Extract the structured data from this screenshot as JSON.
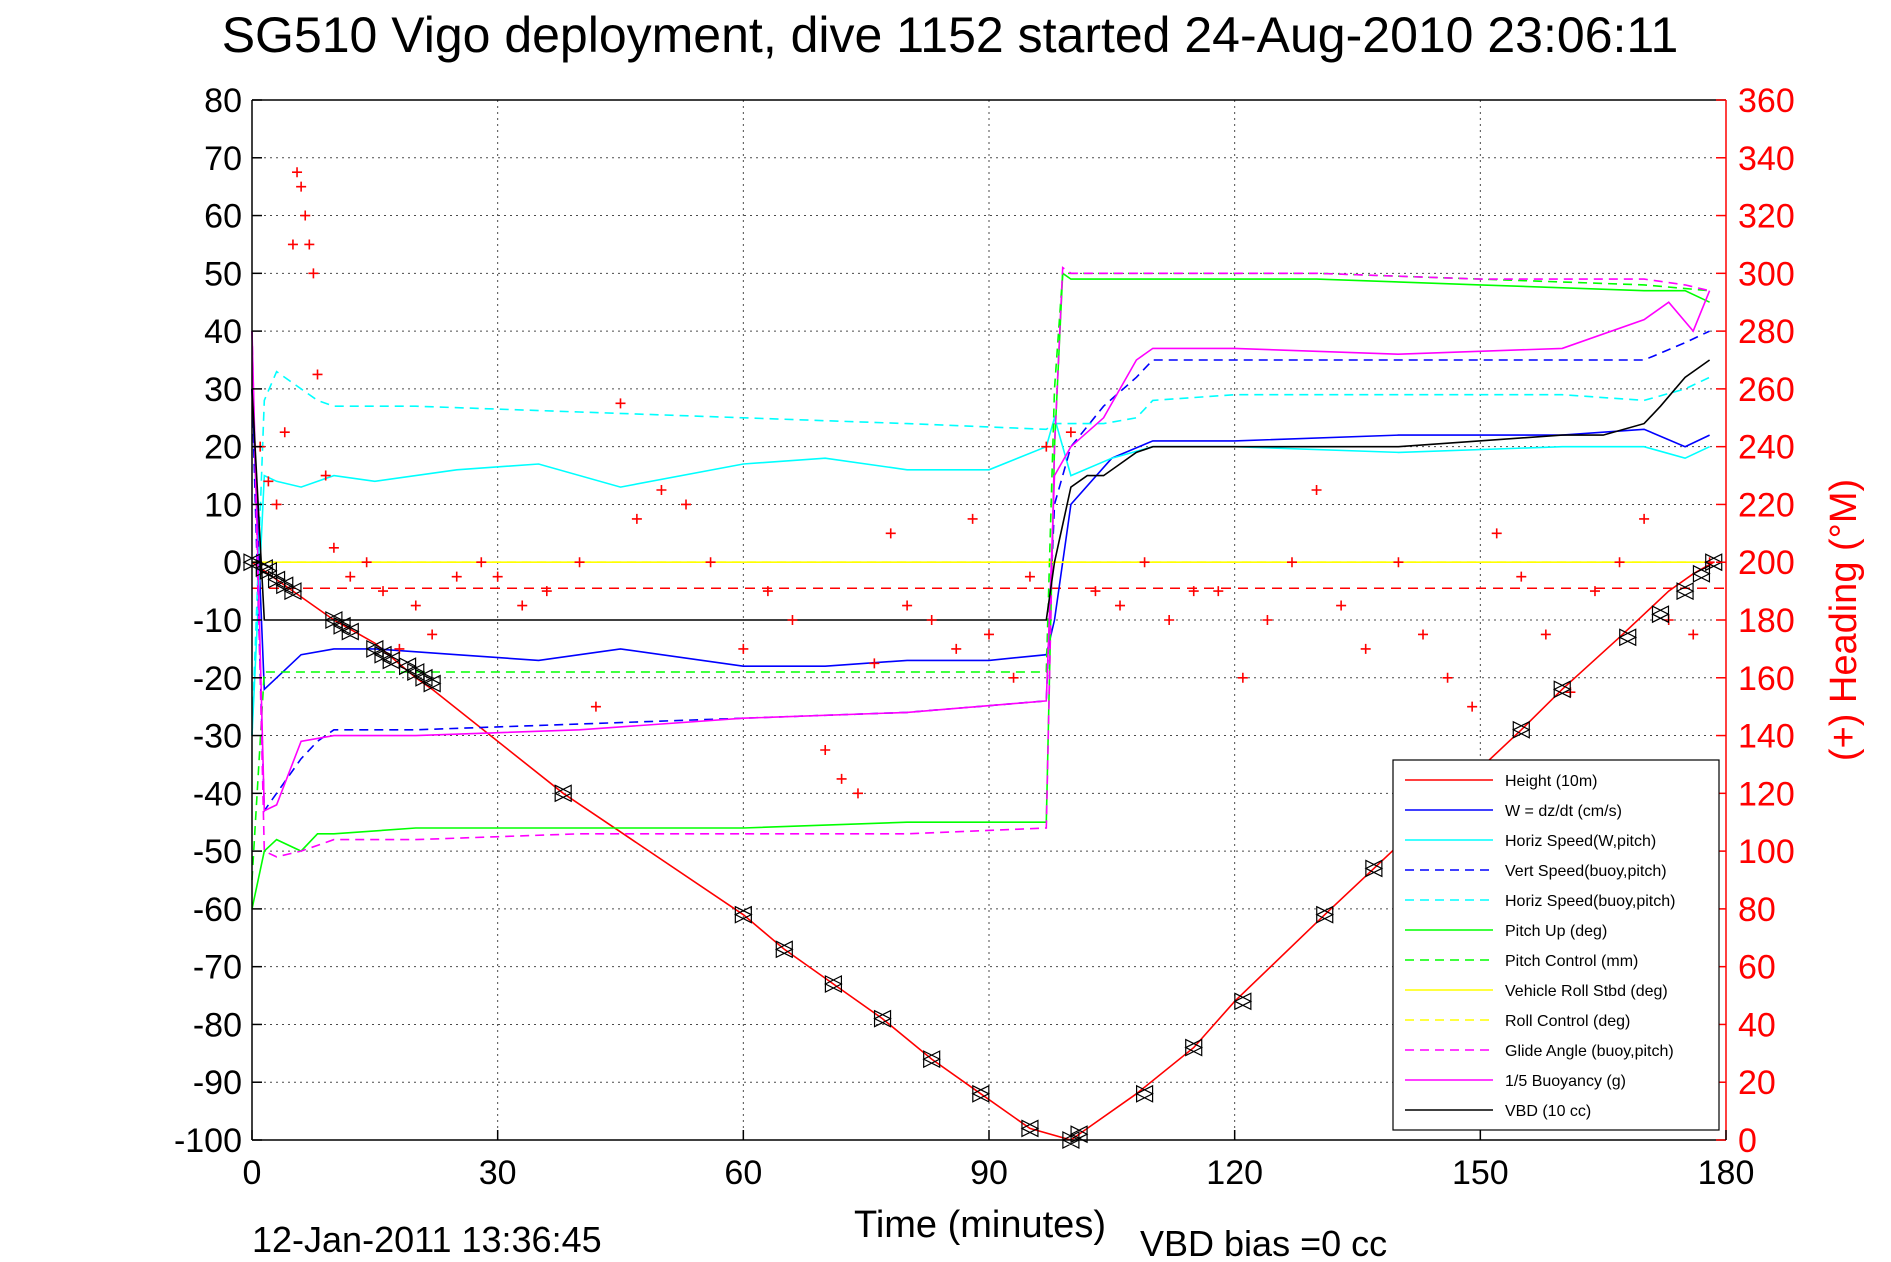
{
  "chart_data": {
    "type": "line",
    "title": "SG510 Vigo deployment, dive 1152 started 24-Aug-2010 23:06:11",
    "xlabel": "Time (minutes)",
    "ylabel_right": "(+) Heading (°M)",
    "footer_timestamp": "12-Jan-2011 13:36:45",
    "footer_note": "VBD bias =0 cc",
    "xlim": [
      0,
      180
    ],
    "ylim": [
      -100,
      80
    ],
    "y2lim": [
      0,
      360
    ],
    "x_ticks": [
      "0",
      "30",
      "60",
      "90",
      "120",
      "150",
      "180"
    ],
    "y_ticks": [
      "80",
      "70",
      "60",
      "50",
      "40",
      "30",
      "20",
      "10",
      "0",
      "-10",
      "-20",
      "-30",
      "-40",
      "-50",
      "-60",
      "-70",
      "-80",
      "-90",
      "-100"
    ],
    "y2_ticks": [
      "360",
      "340",
      "320",
      "300",
      "280",
      "260",
      "240",
      "220",
      "200",
      "180",
      "160",
      "140",
      "120",
      "100",
      "80",
      "60",
      "40",
      "20",
      "0"
    ],
    "grid": true,
    "legend_position": "lower-right",
    "series": [
      {
        "name": "Height (10m)",
        "color": "#ff0000",
        "style": "solid",
        "x": [
          0,
          2,
          5,
          10,
          15,
          20,
          22,
          38,
          60,
          65,
          71,
          77,
          83,
          89,
          95,
          100,
          102,
          108,
          115,
          120,
          131,
          137,
          155,
          160,
          167,
          170,
          173,
          176,
          178.5
        ],
        "y": [
          0,
          -2,
          -5,
          -10,
          -14,
          -20,
          -22,
          -40,
          -61,
          -67,
          -73,
          -79,
          -86,
          -92,
          -98,
          -100,
          -98,
          -92,
          -84,
          -76,
          -61,
          -53,
          -29,
          -22,
          -13,
          -9,
          -5,
          -2,
          0
        ]
      },
      {
        "name": "W = dz/dt (cm/s)",
        "color": "#0000ff",
        "style": "solid",
        "x": [
          0,
          1.5,
          3,
          6,
          10,
          15,
          25,
          35,
          45,
          60,
          70,
          80,
          90,
          97,
          98,
          100,
          105,
          110,
          120,
          140,
          160,
          170,
          175,
          178
        ],
        "y": [
          30,
          -22,
          -20,
          -16,
          -15,
          -15,
          -16,
          -17,
          -15,
          -18,
          -18,
          -17,
          -17,
          -16,
          -10,
          10,
          18,
          21,
          21,
          22,
          22,
          23,
          20,
          22
        ]
      },
      {
        "name": "Horiz Speed(W,pitch)",
        "color": "#00ffff",
        "style": "solid",
        "x": [
          0,
          1.5,
          3,
          6,
          10,
          15,
          25,
          35,
          45,
          60,
          70,
          80,
          90,
          97,
          98,
          100,
          105,
          110,
          120,
          140,
          160,
          170,
          175,
          178
        ],
        "y": [
          -30,
          15,
          14,
          13,
          15,
          14,
          16,
          17,
          13,
          17,
          18,
          16,
          16,
          20,
          25,
          15,
          18,
          20,
          20,
          19,
          20,
          20,
          18,
          20
        ]
      },
      {
        "name": "Vert Speed(buoy,pitch)",
        "color": "#0000ff",
        "style": "dashed",
        "x": [
          0,
          1.5,
          3,
          6,
          8,
          10,
          20,
          40,
          60,
          80,
          97,
          98,
          100,
          104,
          108,
          110,
          120,
          140,
          160,
          170,
          175,
          178
        ],
        "y": [
          30,
          -43,
          -40,
          -34,
          -31,
          -29,
          -29,
          -28,
          -27,
          -26,
          -24,
          10,
          20,
          27,
          32,
          35,
          35,
          35,
          35,
          35,
          38,
          40
        ]
      },
      {
        "name": "Horiz Speed(buoy,pitch)",
        "color": "#00ffff",
        "style": "dashed",
        "x": [
          0,
          1.5,
          3,
          6,
          8,
          10,
          20,
          40,
          60,
          80,
          97,
          98,
          100,
          104,
          108,
          110,
          120,
          140,
          160,
          170,
          175,
          178
        ],
        "y": [
          -30,
          28,
          33,
          30,
          28,
          27,
          27,
          26,
          25,
          24,
          23,
          24,
          24,
          24,
          25,
          28,
          29,
          29,
          29,
          28,
          30,
          32
        ]
      },
      {
        "name": "Pitch Up (deg)",
        "color": "#00ff00",
        "style": "solid",
        "x": [
          0,
          1.5,
          3,
          6,
          8,
          10,
          20,
          40,
          60,
          80,
          97,
          98,
          99,
          100,
          110,
          130,
          150,
          170,
          175,
          178
        ],
        "y": [
          -60,
          -50,
          -48,
          -50,
          -47,
          -47,
          -46,
          -46,
          -46,
          -45,
          -45,
          20,
          50,
          49,
          49,
          49,
          48,
          47,
          47,
          45
        ]
      },
      {
        "name": "Pitch Control (mm)",
        "color": "#00ff00",
        "style": "dashed",
        "x": [
          0,
          1.5,
          3,
          10,
          40,
          60,
          80,
          97,
          98,
          99,
          100,
          110,
          130,
          150,
          170,
          178
        ],
        "y": [
          -55,
          -19,
          -19,
          -19,
          -19,
          -19,
          -19,
          -19,
          30,
          50,
          50,
          50,
          50,
          49,
          48,
          47
        ]
      },
      {
        "name": "Vehicle Roll Stbd (deg)",
        "color": "#ffff00",
        "style": "solid",
        "x": [
          0,
          3,
          5,
          10,
          30,
          50,
          70,
          90,
          99,
          100,
          110,
          130,
          150,
          170,
          175,
          178
        ],
        "y": [
          0,
          0,
          0,
          0,
          0,
          0,
          0,
          0,
          0,
          0,
          0,
          0,
          0,
          0,
          0,
          0
        ]
      },
      {
        "name": "Roll Control (deg)",
        "color": "#ffff00",
        "style": "dashed",
        "x": [
          0,
          30,
          60,
          90,
          120,
          150,
          178
        ],
        "y": [
          0,
          0,
          0,
          0,
          0,
          0,
          0
        ]
      },
      {
        "name": "Glide Angle (buoy,pitch)",
        "color": "#ff00ff",
        "style": "dashed",
        "x": [
          0,
          1.5,
          3,
          6,
          10,
          20,
          40,
          60,
          80,
          97,
          98,
          99,
          100,
          110,
          130,
          150,
          170,
          175,
          178
        ],
        "y": [
          40,
          -50,
          -51,
          -50,
          -48,
          -48,
          -47,
          -47,
          -47,
          -46,
          20,
          51,
          50,
          50,
          50,
          49,
          49,
          48,
          47
        ]
      },
      {
        "name": "1/5 Buoyancy (g)",
        "color": "#ff00ff",
        "style": "solid",
        "x": [
          0,
          1.5,
          3,
          6,
          10,
          20,
          40,
          60,
          80,
          97,
          98,
          100,
          104,
          106,
          108,
          110,
          120,
          140,
          160,
          170,
          173,
          176,
          178
        ],
        "y": [
          40,
          -43,
          -42,
          -31,
          -30,
          -30,
          -29,
          -27,
          -26,
          -24,
          15,
          20,
          25,
          30,
          35,
          37,
          37,
          36,
          37,
          42,
          45,
          40,
          47
        ]
      },
      {
        "name": "VBD (10 cc)",
        "color": "#000000",
        "style": "solid",
        "x": [
          0,
          1.5,
          2,
          20,
          40,
          60,
          80,
          97,
          98,
          100,
          102,
          104,
          106,
          108,
          110,
          115,
          120,
          140,
          160,
          165,
          170,
          172,
          175,
          178
        ],
        "y": [
          30,
          -10,
          -10,
          -10,
          -10,
          -10,
          -10,
          -10,
          0,
          13,
          15,
          15,
          17,
          19,
          20,
          20,
          20,
          20,
          22,
          22,
          24,
          27,
          32,
          35
        ]
      }
    ],
    "heading_points": {
      "name": "(+) Heading (°M)",
      "color": "#ff0000",
      "marker": "+",
      "axis": "right",
      "x": [
        1,
        2,
        3,
        4,
        5,
        5.5,
        6,
        6.5,
        7,
        7.5,
        8,
        9,
        10,
        12,
        14,
        16,
        18,
        20,
        22,
        25,
        28,
        30,
        33,
        36,
        40,
        42,
        45,
        47,
        50,
        53,
        56,
        60,
        63,
        66,
        70,
        72,
        74,
        76,
        78,
        80,
        83,
        86,
        88,
        90,
        93,
        95,
        97,
        100,
        103,
        106,
        109,
        112,
        115,
        118,
        121,
        124,
        127,
        130,
        133,
        136,
        140,
        143,
        146,
        149,
        152,
        155,
        158,
        161,
        164,
        167,
        170,
        173,
        176,
        178
      ],
      "y": [
        240,
        228,
        220,
        245,
        310,
        335,
        330,
        320,
        310,
        300,
        265,
        230,
        205,
        195,
        200,
        190,
        170,
        185,
        175,
        195,
        200,
        195,
        185,
        190,
        200,
        150,
        255,
        215,
        225,
        220,
        200,
        170,
        190,
        180,
        135,
        125,
        120,
        165,
        210,
        185,
        180,
        170,
        215,
        175,
        160,
        195,
        240,
        245,
        190,
        185,
        200,
        180,
        190,
        190,
        160,
        180,
        200,
        225,
        185,
        170,
        200,
        175,
        160,
        150,
        210,
        195,
        175,
        155,
        190,
        200,
        215,
        180,
        175,
        200
      ]
    },
    "pressure_markers": {
      "marker": "triangle-pair",
      "color": "#000000",
      "x": [
        0,
        1.5,
        2,
        3,
        4,
        5,
        10,
        11,
        12,
        15,
        16,
        17,
        19,
        20,
        21,
        22,
        38,
        60,
        65,
        71,
        77,
        83,
        89,
        95,
        100,
        101,
        109,
        115,
        121,
        131,
        137,
        155,
        160,
        168,
        172,
        175,
        177,
        178.5
      ],
      "y": [
        0,
        -1,
        -1.5,
        -3,
        -4,
        -5,
        -10,
        -11,
        -12,
        -15,
        -16,
        -17,
        -18,
        -19,
        -20,
        -21,
        -40,
        -61,
        -67,
        -73,
        -79,
        -86,
        -92,
        -98,
        -100,
        -99,
        -92,
        -84,
        -76,
        -61,
        -53,
        -29,
        -22,
        -13,
        -9,
        -5,
        -2,
        0
      ]
    },
    "reference_lines": [
      {
        "axis": "right",
        "value": 191,
        "color": "#ff0000",
        "style": "dashed"
      }
    ]
  }
}
